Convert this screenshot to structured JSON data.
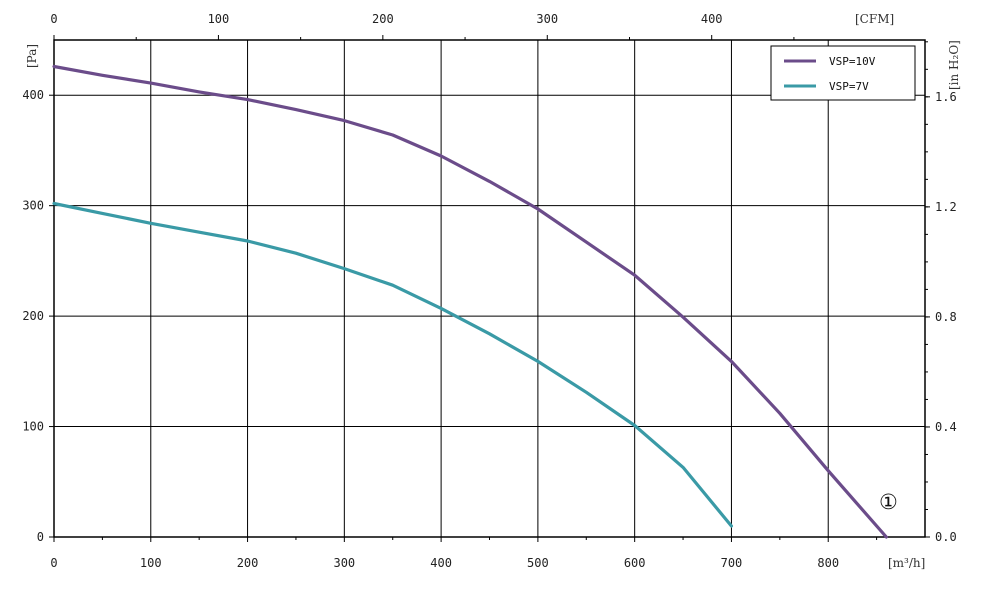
{
  "chart_data": {
    "type": "line",
    "x_unit_label": "[m³/h]",
    "x_top_unit_label": "[CFM]",
    "y_left_unit_label": "[Pa]",
    "y_right_unit_label": "[in H₂O]",
    "xlim": [
      0,
      900
    ],
    "ylim": [
      0,
      450
    ],
    "x_ticks": [
      0,
      100,
      200,
      300,
      400,
      500,
      600,
      700,
      800
    ],
    "x_tick_labels": [
      "0",
      "100",
      "200",
      "300",
      "400",
      "500",
      "600",
      "700",
      "800"
    ],
    "y_ticks": [
      0,
      100,
      200,
      300,
      400
    ],
    "y_tick_labels": [
      "0",
      "100",
      "200",
      "300",
      "400"
    ],
    "x_top_ticks_cfm": [
      0,
      100,
      200,
      300,
      400
    ],
    "x_top_tick_labels": [
      "0",
      "100",
      "200",
      "300",
      "400"
    ],
    "y_right_ticks_inh2o": [
      0.0,
      0.4,
      0.8,
      1.2,
      1.6
    ],
    "y_right_tick_labels": [
      "0.0",
      "0.4",
      "0.8",
      "1.2",
      "1.6"
    ],
    "grid": true,
    "legend_position": "top-right",
    "marker_label": "①",
    "series": [
      {
        "name": "VSP=10V",
        "color": "#6b4c8a",
        "x": [
          0,
          50,
          100,
          150,
          200,
          250,
          300,
          350,
          400,
          450,
          500,
          550,
          600,
          650,
          700,
          750,
          800,
          860
        ],
        "y": [
          426,
          418,
          411,
          403,
          396,
          387,
          377,
          364,
          345,
          322,
          297,
          267,
          237,
          199,
          159,
          112,
          60,
          0
        ]
      },
      {
        "name": "VSP=7V",
        "color": "#3a9aa6",
        "x": [
          0,
          50,
          100,
          150,
          200,
          250,
          300,
          350,
          400,
          450,
          500,
          550,
          600,
          650,
          700
        ],
        "y": [
          302,
          293,
          284,
          276,
          268,
          257,
          243,
          228,
          207,
          184,
          159,
          131,
          101,
          63,
          10
        ]
      }
    ]
  }
}
